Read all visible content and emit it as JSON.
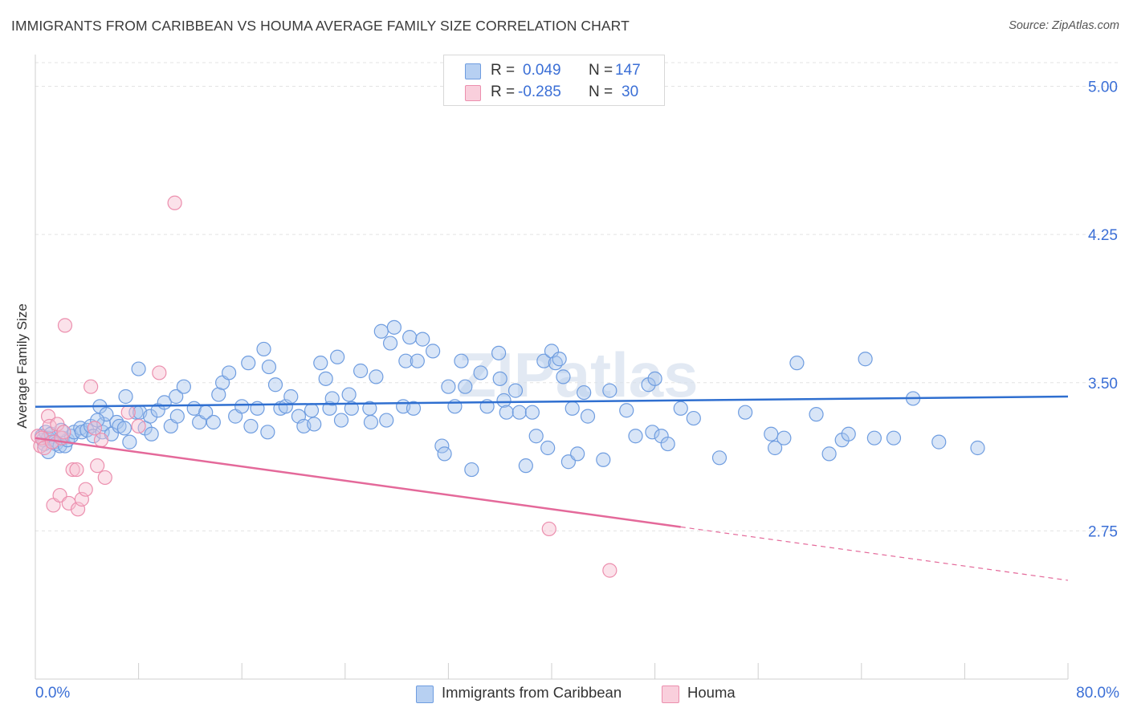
{
  "title": "IMMIGRANTS FROM CARIBBEAN VS HOUMA AVERAGE FAMILY SIZE CORRELATION CHART",
  "source": "Source: ZipAtlas.com",
  "watermark": "ZIPatlas",
  "legend": {
    "rows": [
      {
        "r_label": "R =",
        "r_value": "0.049",
        "n_label": "N =",
        "n_value": "147"
      },
      {
        "r_label": "R =",
        "r_value": "-0.285",
        "n_label": "N =",
        "n_value": "30"
      }
    ]
  },
  "bottom_legend": [
    {
      "label": "Immigrants from Caribbean"
    },
    {
      "label": "Houma"
    }
  ],
  "chart_data": {
    "type": "scatter",
    "title": "IMMIGRANTS FROM CARIBBEAN VS HOUMA AVERAGE FAMILY SIZE CORRELATION CHART",
    "xlabel": "",
    "ylabel": "Average Family Size",
    "xlim": [
      0,
      80
    ],
    "ylim": [
      2.0,
      5.12
    ],
    "x_tick_labels": [
      "0.0%",
      "80.0%"
    ],
    "y_ticks": [
      2.75,
      3.5,
      4.25,
      5.0
    ],
    "y_tick_labels": [
      "2.75",
      "3.50",
      "4.25",
      "5.00"
    ],
    "grid": "horizontal dashed",
    "legend_position": "top-center",
    "colors": {
      "blue_fill": "#a9c5ee",
      "blue_stroke": "#6f9de0",
      "blue_line": "#2f6fd0",
      "pink_fill": "#f6bfd0",
      "pink_stroke": "#ec8fae",
      "pink_line": "#e4699a",
      "tick_label": "#3b6fd6"
    },
    "series": [
      {
        "name": "Immigrants from Caribbean",
        "color": "#6f9de0",
        "trend": {
          "x0": 0,
          "y0": 3.378,
          "x1": 80,
          "y1": 3.43,
          "dashed_from": null
        },
        "points": [
          [
            0.5,
            3.23
          ],
          [
            0.6,
            3.21
          ],
          [
            0.7,
            3.19
          ],
          [
            0.8,
            3.25
          ],
          [
            1.0,
            3.22
          ],
          [
            1.2,
            3.24
          ],
          [
            1.3,
            3.2
          ],
          [
            1.5,
            3.2
          ],
          [
            1.6,
            3.19
          ],
          [
            1.9,
            3.18
          ],
          [
            2.1,
            3.22
          ],
          [
            2.3,
            3.18
          ],
          [
            2.5,
            3.21
          ],
          [
            2.8,
            3.23
          ],
          [
            3.0,
            3.25
          ],
          [
            3.5,
            3.27
          ],
          [
            3.6,
            3.25
          ],
          [
            4.0,
            3.26
          ],
          [
            4.3,
            3.28
          ],
          [
            4.5,
            3.23
          ],
          [
            5.0,
            3.38
          ],
          [
            5.2,
            3.25
          ],
          [
            5.3,
            3.29
          ],
          [
            5.5,
            3.34
          ],
          [
            5.9,
            3.24
          ],
          [
            6.3,
            3.3
          ],
          [
            6.5,
            3.28
          ],
          [
            6.9,
            3.27
          ],
          [
            7.0,
            3.43
          ],
          [
            7.3,
            3.2
          ],
          [
            7.8,
            3.35
          ],
          [
            8.0,
            3.57
          ],
          [
            8.1,
            3.35
          ],
          [
            8.5,
            3.27
          ],
          [
            8.9,
            3.33
          ],
          [
            9.5,
            3.36
          ],
          [
            10.0,
            3.4
          ],
          [
            10.5,
            3.28
          ],
          [
            10.9,
            3.43
          ],
          [
            11.5,
            3.48
          ],
          [
            12.3,
            3.37
          ],
          [
            12.7,
            3.3
          ],
          [
            13.2,
            3.35
          ],
          [
            13.8,
            3.3
          ],
          [
            14.2,
            3.44
          ],
          [
            14.5,
            3.5
          ],
          [
            15.0,
            3.55
          ],
          [
            15.5,
            3.33
          ],
          [
            16.0,
            3.38
          ],
          [
            16.5,
            3.6
          ],
          [
            16.7,
            3.28
          ],
          [
            17.2,
            3.37
          ],
          [
            17.7,
            3.67
          ],
          [
            18.1,
            3.58
          ],
          [
            18.6,
            3.49
          ],
          [
            19.0,
            3.37
          ],
          [
            19.4,
            3.38
          ],
          [
            19.8,
            3.43
          ],
          [
            20.4,
            3.33
          ],
          [
            20.8,
            3.28
          ],
          [
            21.4,
            3.36
          ],
          [
            21.6,
            3.29
          ],
          [
            22.1,
            3.6
          ],
          [
            22.5,
            3.52
          ],
          [
            22.8,
            3.37
          ],
          [
            23.0,
            3.42
          ],
          [
            23.4,
            3.63
          ],
          [
            23.7,
            3.31
          ],
          [
            24.3,
            3.44
          ],
          [
            24.5,
            3.37
          ],
          [
            25.2,
            3.56
          ],
          [
            25.9,
            3.37
          ],
          [
            26.4,
            3.53
          ],
          [
            26.8,
            3.76
          ],
          [
            27.2,
            3.31
          ],
          [
            27.5,
            3.7
          ],
          [
            27.8,
            3.78
          ],
          [
            28.5,
            3.38
          ],
          [
            28.7,
            3.61
          ],
          [
            29.0,
            3.73
          ],
          [
            29.3,
            3.37
          ],
          [
            29.6,
            3.61
          ],
          [
            30.0,
            3.72
          ],
          [
            30.8,
            3.66
          ],
          [
            31.5,
            3.18
          ],
          [
            31.7,
            3.14
          ],
          [
            32.0,
            3.48
          ],
          [
            32.5,
            3.38
          ],
          [
            33.0,
            3.61
          ],
          [
            33.3,
            3.48
          ],
          [
            33.8,
            3.06
          ],
          [
            34.5,
            3.55
          ],
          [
            35.0,
            3.38
          ],
          [
            35.9,
            3.65
          ],
          [
            36.0,
            3.52
          ],
          [
            36.3,
            3.41
          ],
          [
            36.5,
            3.35
          ],
          [
            37.2,
            3.46
          ],
          [
            37.5,
            3.35
          ],
          [
            38.0,
            3.08
          ],
          [
            38.5,
            3.35
          ],
          [
            38.8,
            3.23
          ],
          [
            39.4,
            3.61
          ],
          [
            39.7,
            3.17
          ],
          [
            40.0,
            3.66
          ],
          [
            40.3,
            3.6
          ],
          [
            40.6,
            3.62
          ],
          [
            40.9,
            3.53
          ],
          [
            41.3,
            3.1
          ],
          [
            41.6,
            3.37
          ],
          [
            42.0,
            3.14
          ],
          [
            42.5,
            3.45
          ],
          [
            42.8,
            3.33
          ],
          [
            44.0,
            3.11
          ],
          [
            44.5,
            3.46
          ],
          [
            45.8,
            3.36
          ],
          [
            46.5,
            3.23
          ],
          [
            47.5,
            3.49
          ],
          [
            47.8,
            3.25
          ],
          [
            48.0,
            3.52
          ],
          [
            48.5,
            3.23
          ],
          [
            49.0,
            3.19
          ],
          [
            50.0,
            3.37
          ],
          [
            51.0,
            3.32
          ],
          [
            53.0,
            3.12
          ],
          [
            55.0,
            3.35
          ],
          [
            57.0,
            3.24
          ],
          [
            57.3,
            3.17
          ],
          [
            58.0,
            3.22
          ],
          [
            59.0,
            3.6
          ],
          [
            60.5,
            3.34
          ],
          [
            61.5,
            3.14
          ],
          [
            62.5,
            3.21
          ],
          [
            63.0,
            3.24
          ],
          [
            64.3,
            3.62
          ],
          [
            65.0,
            3.22
          ],
          [
            66.5,
            3.22
          ],
          [
            68.0,
            3.42
          ],
          [
            70.0,
            3.2
          ],
          [
            73.0,
            3.17
          ],
          [
            1.0,
            3.15
          ],
          [
            2.0,
            3.26
          ],
          [
            4.8,
            3.31
          ],
          [
            9.0,
            3.24
          ],
          [
            11.0,
            3.33
          ],
          [
            18.0,
            3.25
          ],
          [
            26.0,
            3.3
          ]
        ]
      },
      {
        "name": "Houma",
        "color": "#ec8fae",
        "trend": {
          "x0": 0,
          "y0": 3.22,
          "x1": 80,
          "y1": 2.5,
          "dashed_from": 50
        },
        "points": [
          [
            0.2,
            3.23
          ],
          [
            0.4,
            3.18
          ],
          [
            0.5,
            3.22
          ],
          [
            0.7,
            3.17
          ],
          [
            1.0,
            3.33
          ],
          [
            1.1,
            3.28
          ],
          [
            1.3,
            3.2
          ],
          [
            1.4,
            2.88
          ],
          [
            1.7,
            3.29
          ],
          [
            1.9,
            2.93
          ],
          [
            2.0,
            3.22
          ],
          [
            2.2,
            3.25
          ],
          [
            2.3,
            3.79
          ],
          [
            2.6,
            2.89
          ],
          [
            2.9,
            3.06
          ],
          [
            3.2,
            3.06
          ],
          [
            3.3,
            2.86
          ],
          [
            3.6,
            2.91
          ],
          [
            3.9,
            2.96
          ],
          [
            4.3,
            3.48
          ],
          [
            4.6,
            3.27
          ],
          [
            4.8,
            3.08
          ],
          [
            5.1,
            3.21
          ],
          [
            5.4,
            3.02
          ],
          [
            7.2,
            3.35
          ],
          [
            8.0,
            3.28
          ],
          [
            9.6,
            3.55
          ],
          [
            10.8,
            4.41
          ],
          [
            39.8,
            2.76
          ],
          [
            44.5,
            2.55
          ]
        ]
      }
    ]
  }
}
